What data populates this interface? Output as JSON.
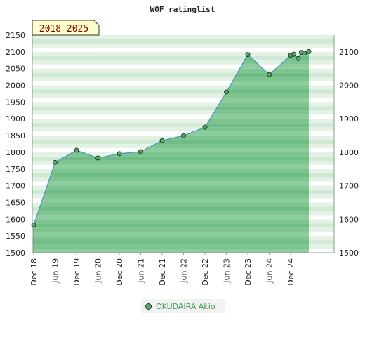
{
  "chart_data": {
    "type": "area",
    "title": "WOF ratinglist",
    "badge": "2018–2025",
    "ylim": [
      1500,
      2150
    ],
    "y_ticks_left": [
      1500,
      1550,
      1600,
      1650,
      1700,
      1750,
      1800,
      1850,
      1900,
      1950,
      2000,
      2050,
      2100,
      2150
    ],
    "y_ticks_right": [
      1500,
      1600,
      1700,
      1800,
      1900,
      2000,
      2100
    ],
    "x_tick_labels": [
      "Dec 18",
      "Jun 19",
      "Dec 19",
      "Jun 20",
      "Dec 20",
      "Jun 21",
      "Dec 21",
      "Jun 22",
      "Dec 22",
      "Jun 23",
      "Dec 23",
      "Jun 24",
      "Dec 24"
    ],
    "xlim": [
      0,
      13.9
    ],
    "grid": true,
    "legend_position": "bottom-center",
    "series": [
      {
        "name": "OKUDAIRA Akio",
        "color": "#5aa86a",
        "line_color": "#4f8fc9",
        "points": [
          {
            "x": 0.0,
            "y": 1583
          },
          {
            "x": 1.0,
            "y": 1770
          },
          {
            "x": 2.0,
            "y": 1806
          },
          {
            "x": 3.0,
            "y": 1783
          },
          {
            "x": 4.0,
            "y": 1796
          },
          {
            "x": 5.0,
            "y": 1802
          },
          {
            "x": 6.0,
            "y": 1835
          },
          {
            "x": 7.0,
            "y": 1850
          },
          {
            "x": 8.0,
            "y": 1875
          },
          {
            "x": 9.0,
            "y": 1980
          },
          {
            "x": 10.0,
            "y": 2092
          },
          {
            "x": 11.0,
            "y": 2032
          },
          {
            "x": 12.0,
            "y": 2090
          },
          {
            "x": 12.15,
            "y": 2093
          },
          {
            "x": 12.35,
            "y": 2080
          },
          {
            "x": 12.5,
            "y": 2098
          },
          {
            "x": 12.65,
            "y": 2096
          },
          {
            "x": 12.85,
            "y": 2101
          }
        ]
      }
    ]
  }
}
